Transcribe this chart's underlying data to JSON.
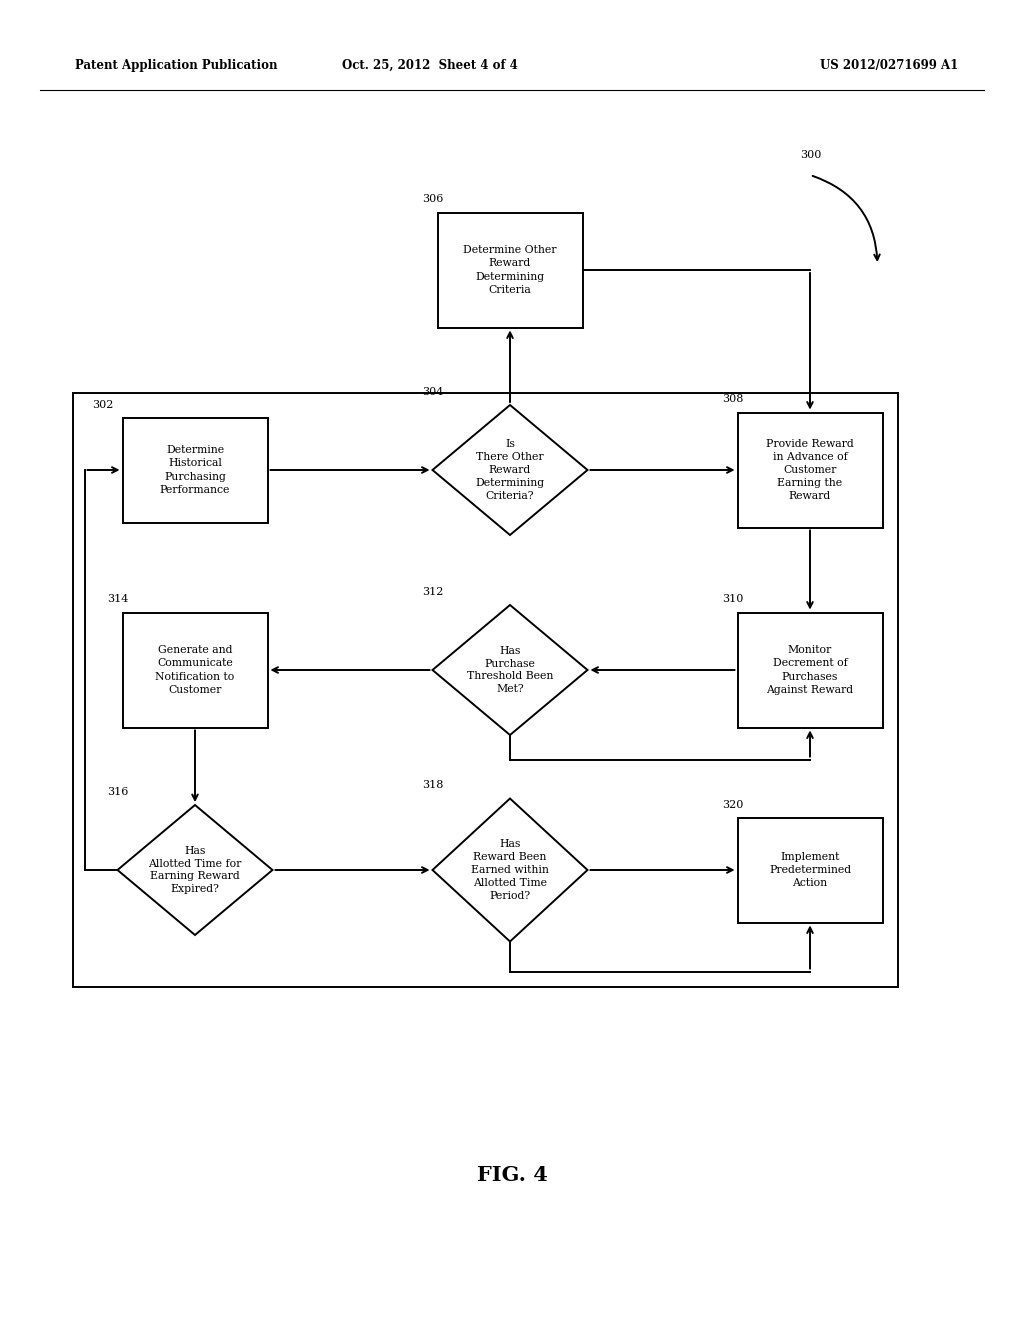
{
  "bg_color": "#ffffff",
  "header_left": "Patent Application Publication",
  "header_mid": "Oct. 25, 2012  Sheet 4 of 4",
  "header_right": "US 2012/0271699 A1",
  "fig_label": "FIG. 4",
  "lw": 1.4,
  "font_size": 7.8,
  "ref_font_size": 8.0,
  "header_font_size": 8.5
}
